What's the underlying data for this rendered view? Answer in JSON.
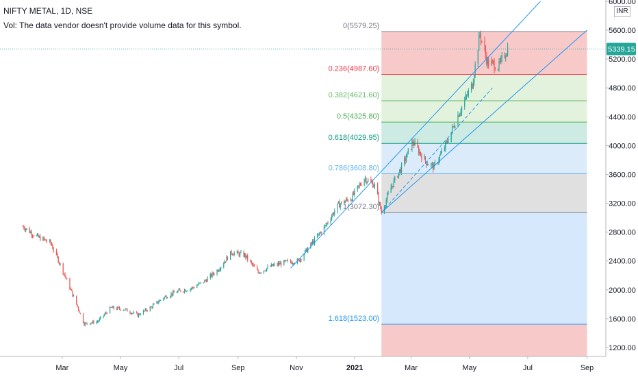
{
  "header": {
    "title": "NIFTY METAL, 1D, NSE",
    "vol_note": "Vol: The data vendor doesn't provide volume data for this symbol.",
    "currency": "INR"
  },
  "colors": {
    "up": "#26a69a",
    "down": "#ef5350",
    "channel": "#2196f3",
    "last_price_bg": "#26a69a"
  },
  "chart_data": {
    "type": "candlestick",
    "title": "NIFTY METAL, 1D, NSE",
    "y_ticks": [
      1200,
      1600,
      2000,
      2400,
      2800,
      3200,
      3600,
      4000,
      4400,
      4800,
      5200,
      5600,
      6000
    ],
    "y_tick_labels": [
      "1200.00",
      "1600.00",
      "2000.00",
      "2400.00",
      "2800.00",
      "3200.00",
      "3600.00",
      "4000.00",
      "4400.00",
      "4800.00",
      "5200.00",
      "5600.00",
      "6000.00"
    ],
    "ylim": [
      1000,
      6050
    ],
    "x_ticks": [
      "Mar",
      "May",
      "Jul",
      "Sep",
      "Nov",
      "2021",
      "Mar",
      "May",
      "Jul",
      "Sep"
    ],
    "x_tick_bold": [
      false,
      false,
      false,
      false,
      false,
      true,
      false,
      false,
      false,
      false
    ],
    "last_price": 5339.15,
    "last_price_label": "5339.15",
    "price_path": [
      [
        "2020-01-20",
        2880
      ],
      [
        "2020-02-03",
        2740
      ],
      [
        "2020-02-18",
        2650
      ],
      [
        "2020-02-28",
        2350
      ],
      [
        "2020-03-10",
        2000
      ],
      [
        "2020-03-24",
        1530
      ],
      [
        "2020-04-07",
        1560
      ],
      [
        "2020-04-21",
        1750
      ],
      [
        "2020-05-05",
        1730
      ],
      [
        "2020-05-19",
        1650
      ],
      [
        "2020-06-02",
        1760
      ],
      [
        "2020-06-16",
        1900
      ],
      [
        "2020-06-30",
        1980
      ],
      [
        "2020-07-14",
        2020
      ],
      [
        "2020-07-28",
        2120
      ],
      [
        "2020-08-11",
        2280
      ],
      [
        "2020-08-25",
        2520
      ],
      [
        "2020-09-08",
        2480
      ],
      [
        "2020-09-22",
        2240
      ],
      [
        "2020-10-06",
        2330
      ],
      [
        "2020-10-20",
        2380
      ],
      [
        "2020-11-03",
        2400
      ],
      [
        "2020-11-17",
        2640
      ],
      [
        "2020-12-01",
        2880
      ],
      [
        "2020-12-15",
        3180
      ],
      [
        "2020-12-29",
        3280
      ],
      [
        "2021-01-11",
        3550
      ],
      [
        "2021-01-22",
        3450
      ],
      [
        "2021-01-29",
        3072
      ],
      [
        "2021-02-08",
        3420
      ],
      [
        "2021-02-19",
        3700
      ],
      [
        "2021-03-03",
        4050
      ],
      [
        "2021-03-16",
        3780
      ],
      [
        "2021-03-25",
        3700
      ],
      [
        "2021-04-06",
        4000
      ],
      [
        "2021-04-20",
        4450
      ],
      [
        "2021-05-04",
        4850
      ],
      [
        "2021-05-12",
        5550
      ],
      [
        "2021-05-20",
        5150
      ],
      [
        "2021-06-01",
        5100
      ],
      [
        "2021-06-10",
        5350
      ]
    ],
    "fibonacci": {
      "start_date": "2021-01-29",
      "end_date": "2021-09-01",
      "levels": [
        {
          "ratio": "0",
          "value": 5579.25,
          "label": "0(5579.25)",
          "color": "#787b86",
          "fill": "#f8c9c9"
        },
        {
          "ratio": "0.236",
          "value": 4987.6,
          "label": "0.236(4987.60)",
          "color": "#f23645",
          "fill": "#e3f2dd"
        },
        {
          "ratio": "0.382",
          "value": 4621.6,
          "label": "0.382(4621.60)",
          "color": "#66bb6a",
          "fill": "#e3f2dd"
        },
        {
          "ratio": "0.5",
          "value": 4325.8,
          "label": "0.5(4325.80)",
          "color": "#4caf50",
          "fill": "#cdeae3"
        },
        {
          "ratio": "0.618",
          "value": 4029.95,
          "label": "0.618(4029.95)",
          "color": "#089981",
          "fill": "#dcebf9"
        },
        {
          "ratio": "0.786",
          "value": 3608.8,
          "label": "0.786(3608.80)",
          "color": "#64b5f6",
          "fill": "#e0e0e0"
        },
        {
          "ratio": "1",
          "value": 3072.3,
          "label": "1(3072.30)",
          "color": "#787b86",
          "fill": "#d6e8fb"
        },
        {
          "ratio": "1.618",
          "value": 1523.0,
          "label": "1.618(1523.00)",
          "color": "#2196f3",
          "fill": "#f8c9c9"
        }
      ]
    },
    "channel_lines": [
      {
        "points": [
          [
            "2020-10-26",
            2300
          ],
          [
            "2021-08-01",
            6250
          ]
        ],
        "style": "solid"
      },
      {
        "points": [
          [
            "2021-01-29",
            3072.3
          ],
          [
            "2021-09-01",
            5600
          ]
        ],
        "style": "solid"
      },
      {
        "points": [
          [
            "2021-01-29",
            3072.3
          ],
          [
            "2021-05-25",
            4800
          ]
        ],
        "style": "dashed"
      }
    ]
  }
}
